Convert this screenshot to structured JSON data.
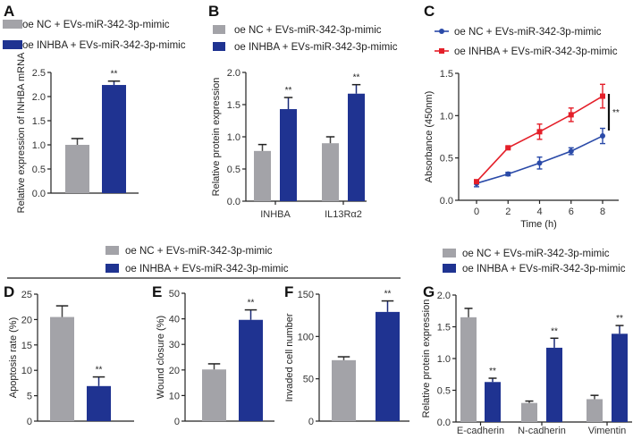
{
  "colors": {
    "control": "#a3a3a8",
    "treatment": "#1f3391",
    "line_control": "#2a4aa8",
    "line_treatment": "#e41f29"
  },
  "legend": {
    "control": "oe NC + EVs-miR-342-3p-mimic",
    "treatment": "oe INHBA + EVs-miR-342-3p-mimic"
  },
  "chart_data": [
    {
      "panel": "A",
      "type": "bar",
      "ylabel": "Relative expression of INHBA mRNA",
      "ylim": [
        0,
        2.5
      ],
      "yticks": [
        "0.0",
        "0.5",
        "1.0",
        "1.5",
        "2.0",
        "2.5"
      ],
      "categories": [
        ""
      ],
      "series": [
        {
          "name": "oe NC + EVs-miR-342-3p-mimic",
          "values": [
            1.0
          ],
          "errors": [
            0.13
          ]
        },
        {
          "name": "oe INHBA + EVs-miR-342-3p-mimic",
          "values": [
            2.24
          ],
          "errors": [
            0.08
          ]
        }
      ],
      "annotations": [
        [
          "",
          "**"
        ]
      ]
    },
    {
      "panel": "B",
      "type": "bar",
      "ylabel": "Relative protein expression",
      "ylim": [
        0,
        2.0
      ],
      "yticks": [
        "0.0",
        "0.5",
        "1.0",
        "1.5",
        "2.0"
      ],
      "categories": [
        "INHBA",
        "IL13Rα2"
      ],
      "series": [
        {
          "name": "oe NC + EVs-miR-342-3p-mimic",
          "values": [
            0.78,
            0.9
          ],
          "errors": [
            0.1,
            0.1
          ]
        },
        {
          "name": "oe INHBA + EVs-miR-342-3p-mimic",
          "values": [
            1.43,
            1.67
          ],
          "errors": [
            0.18,
            0.14
          ]
        }
      ],
      "annotations": [
        [
          "",
          "**"
        ],
        [
          "",
          "**"
        ]
      ]
    },
    {
      "panel": "C",
      "type": "line",
      "xlabel": "Time (h)",
      "ylabel": "Absorbance (450nm)",
      "ylim": [
        0,
        1.5
      ],
      "xlim": [
        0,
        8
      ],
      "yticks": [
        "0.0",
        "0.5",
        "1.0",
        "1.5"
      ],
      "xticks": [
        "0",
        "2",
        "4",
        "6",
        "8"
      ],
      "x": [
        0,
        2,
        4,
        6,
        8
      ],
      "series": [
        {
          "name": "oe NC + EVs-miR-342-3p-mimic",
          "values": [
            0.2,
            0.31,
            0.44,
            0.58,
            0.76
          ],
          "errors": [
            0.04,
            0.02,
            0.07,
            0.04,
            0.09
          ]
        },
        {
          "name": "oe INHBA + EVs-miR-342-3p-mimic",
          "values": [
            0.22,
            0.62,
            0.81,
            1.01,
            1.23
          ],
          "errors": [
            0.02,
            0.01,
            0.09,
            0.08,
            0.14
          ]
        }
      ],
      "annotation": "**"
    },
    {
      "panel": "D",
      "type": "bar",
      "ylabel": "Apoptosis rate (%)",
      "ylim": [
        0,
        25
      ],
      "yticks": [
        "0",
        "5",
        "10",
        "15",
        "20",
        "25"
      ],
      "categories": [
        ""
      ],
      "series": [
        {
          "name": "oe NC + EVs-miR-342-3p-mimic",
          "values": [
            20.5
          ],
          "errors": [
            2.2
          ]
        },
        {
          "name": "oe INHBA + EVs-miR-342-3p-mimic",
          "values": [
            6.9
          ],
          "errors": [
            1.8
          ]
        }
      ],
      "annotations": [
        [
          "",
          "**"
        ]
      ]
    },
    {
      "panel": "E",
      "type": "bar",
      "ylabel": "Wound closure (%)",
      "ylim": [
        0,
        50
      ],
      "yticks": [
        "0",
        "10",
        "20",
        "30",
        "40",
        "50"
      ],
      "categories": [
        ""
      ],
      "series": [
        {
          "name": "oe NC + EVs-miR-342-3p-mimic",
          "values": [
            20.2
          ],
          "errors": [
            2.2
          ]
        },
        {
          "name": "oe INHBA + EVs-miR-342-3p-mimic",
          "values": [
            39.6
          ],
          "errors": [
            3.9
          ]
        }
      ],
      "annotations": [
        [
          "",
          "**"
        ]
      ]
    },
    {
      "panel": "F",
      "type": "bar",
      "ylabel": "Invaded cell number",
      "ylim": [
        0,
        150
      ],
      "yticks": [
        "0",
        "50",
        "100",
        "150"
      ],
      "categories": [
        ""
      ],
      "series": [
        {
          "name": "oe NC + EVs-miR-342-3p-mimic",
          "values": [
            72
          ],
          "errors": [
            4
          ]
        },
        {
          "name": "oe INHBA + EVs-miR-342-3p-mimic",
          "values": [
            129
          ],
          "errors": [
            13
          ]
        }
      ],
      "annotations": [
        [
          "",
          "**"
        ]
      ]
    },
    {
      "panel": "G",
      "type": "bar",
      "ylabel": "Relative protein expression",
      "ylim": [
        0,
        2.0
      ],
      "yticks": [
        "0.0",
        "0.5",
        "1.0",
        "1.5",
        "2.0"
      ],
      "categories": [
        "E-cadherin",
        "N-cadherin",
        "Vimentin"
      ],
      "series": [
        {
          "name": "oe NC + EVs-miR-342-3p-mimic",
          "values": [
            1.65,
            0.3,
            0.36
          ],
          "errors": [
            0.14,
            0.03,
            0.06
          ]
        },
        {
          "name": "oe INHBA + EVs-miR-342-3p-mimic",
          "values": [
            0.63,
            1.17,
            1.39
          ],
          "errors": [
            0.06,
            0.15,
            0.13
          ]
        }
      ],
      "annotations": [
        [
          "",
          "**"
        ],
        [
          "",
          "**"
        ],
        [
          "",
          "**"
        ]
      ]
    }
  ]
}
